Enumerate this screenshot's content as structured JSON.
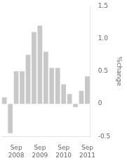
{
  "chart_data": {
    "type": "bar",
    "categories": [
      null,
      null,
      "Sep\n2008",
      null,
      null,
      null,
      "Sep\n2009",
      null,
      null,
      null,
      "Sep\n2010",
      null,
      null,
      null,
      "Sep\n2011"
    ],
    "values": [
      0.1,
      -0.45,
      0.5,
      0.5,
      0.75,
      1.1,
      1.2,
      0.8,
      0.55,
      0.55,
      0.3,
      0.15,
      -0.05,
      0.2,
      0.42
    ],
    "color": "#c8c8c8",
    "ylabel": "%change",
    "ylim": [
      -0.5,
      1.5
    ],
    "yticks": [
      -0.5,
      0,
      0.5,
      {
        "value": 1,
        "label": "1.0"
      },
      1.5
    ],
    "grid": false
  }
}
